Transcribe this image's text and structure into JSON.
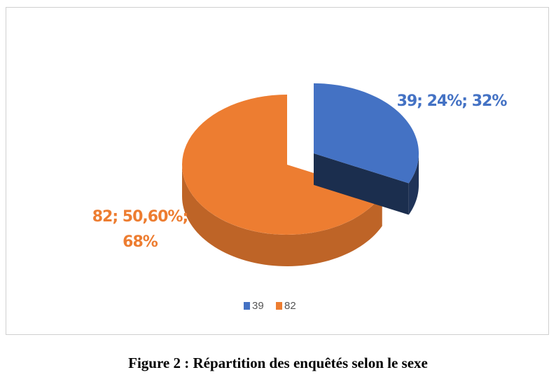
{
  "chart_data": {
    "type": "pie",
    "categories": [
      "39",
      "82"
    ],
    "values": [
      32,
      68
    ],
    "value_labels": [
      "39; 24%; 32%",
      "82; 50,60%; 68%"
    ],
    "colors": [
      "#4472c4",
      "#ed7d31"
    ],
    "legend": "bottom"
  },
  "caption": "Figure 2 : Répartition des enquêtés selon le sexe"
}
